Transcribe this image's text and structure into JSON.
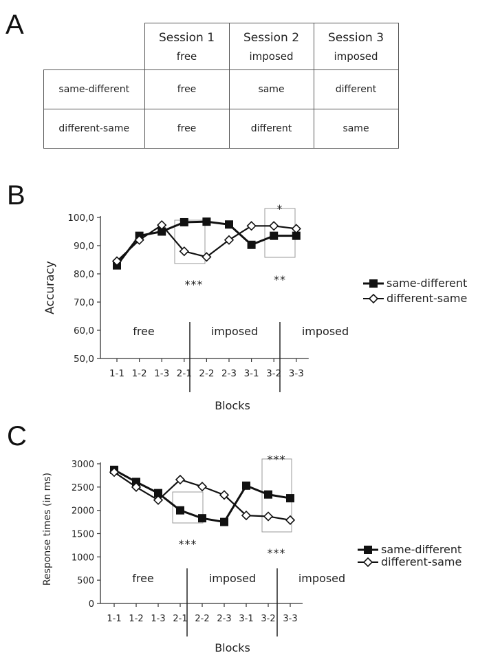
{
  "panels": {
    "a": "A",
    "b": "B",
    "c": "C"
  },
  "table": {
    "columns": [
      {
        "session": "Session 1",
        "mode": "free"
      },
      {
        "session": "Session 2",
        "mode": "imposed"
      },
      {
        "session": "Session 3",
        "mode": "imposed"
      }
    ],
    "rows": [
      {
        "label": "same-different",
        "cells": [
          "free",
          "same",
          "different"
        ]
      },
      {
        "label": "different-same",
        "cells": [
          "free",
          "different",
          "same"
        ]
      }
    ]
  },
  "chart_data": [
    {
      "type": "line",
      "panel": "B",
      "xlabel": "Blocks",
      "ylabel": "Accuracy",
      "categories": [
        "1-1",
        "1-2",
        "1-3",
        "2-1",
        "2-2",
        "2-3",
        "3-1",
        "3-2",
        "3-3"
      ],
      "ylim": [
        50,
        100
      ],
      "yticks": [
        "50,0",
        "60,0",
        "70,0",
        "80,0",
        "90,0",
        "100,0"
      ],
      "series": [
        {
          "name": "same-different",
          "marker": "filled-square",
          "values": [
            83.0,
            93.5,
            95.0,
            98.3,
            98.5,
            97.5,
            90.3,
            93.5,
            93.5
          ]
        },
        {
          "name": "different-same",
          "marker": "open-diamond",
          "values": [
            84.5,
            92.0,
            97.3,
            88.0,
            86.0,
            92.0,
            97.0,
            97.0,
            96.0
          ]
        }
      ],
      "session_labels": [
        "free",
        "imposed",
        "imposed"
      ],
      "annotations": [
        "***",
        "*",
        "**"
      ],
      "legend_position": "right"
    },
    {
      "type": "line",
      "panel": "C",
      "xlabel": "Blocks",
      "ylabel": "Response times (in ms)",
      "categories": [
        "1-1",
        "1-2",
        "1-3",
        "2-1",
        "2-2",
        "2-3",
        "3-1",
        "3-2",
        "3-3"
      ],
      "ylim": [
        0,
        3000
      ],
      "yticks": [
        "0",
        "500",
        "1000",
        "1500",
        "2000",
        "2500",
        "3000"
      ],
      "series": [
        {
          "name": "same-different",
          "marker": "filled-square",
          "values": [
            2870,
            2610,
            2370,
            2000,
            1830,
            1750,
            2530,
            2340,
            2260
          ]
        },
        {
          "name": "different-same",
          "marker": "open-diamond",
          "values": [
            2820,
            2500,
            2220,
            2660,
            2510,
            2330,
            1890,
            1870,
            1790
          ]
        }
      ],
      "session_labels": [
        "free",
        "imposed",
        "imposed"
      ],
      "annotations": [
        "***",
        "***",
        "***"
      ],
      "legend_position": "right"
    }
  ]
}
